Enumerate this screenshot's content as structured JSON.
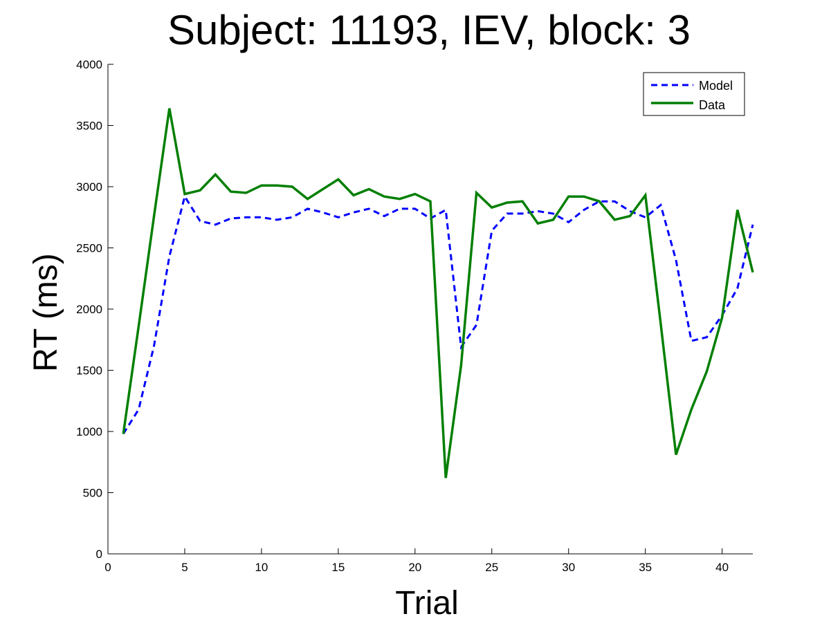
{
  "chart_data": {
    "type": "line",
    "title": "Subject: 11193, IEV, block: 3",
    "xlabel": "Trial",
    "ylabel": "RT (ms)",
    "xlim": [
      0,
      42
    ],
    "ylim": [
      0,
      4000
    ],
    "xticks": [
      0,
      5,
      10,
      15,
      20,
      25,
      30,
      35,
      40
    ],
    "yticks": [
      0,
      500,
      1000,
      1500,
      2000,
      2500,
      3000,
      3500,
      4000
    ],
    "grid": false,
    "legend_position": "top-right",
    "x": [
      1,
      2,
      3,
      4,
      5,
      6,
      7,
      8,
      9,
      10,
      11,
      12,
      13,
      14,
      15,
      16,
      17,
      18,
      19,
      20,
      21,
      22,
      23,
      24,
      25,
      26,
      27,
      28,
      29,
      30,
      31,
      32,
      33,
      34,
      35,
      36,
      37,
      38,
      39,
      40,
      41,
      42
    ],
    "series": [
      {
        "name": "Model",
        "color": "#0000ff",
        "style": "dashed",
        "values": [
          980,
          1180,
          1700,
          2430,
          2920,
          2720,
          2690,
          2740,
          2750,
          2750,
          2730,
          2750,
          2820,
          2790,
          2750,
          2790,
          2820,
          2760,
          2820,
          2820,
          2740,
          2810,
          1690,
          1870,
          2640,
          2780,
          2780,
          2800,
          2780,
          2710,
          2810,
          2880,
          2880,
          2800,
          2750,
          2850,
          2400,
          1740,
          1770,
          1950,
          2170,
          2690
        ]
      },
      {
        "name": "Data",
        "color": "#007f00",
        "style": "solid",
        "values": [
          980,
          1860,
          2760,
          3640,
          2940,
          2970,
          3100,
          2960,
          2950,
          3010,
          3010,
          3000,
          2900,
          2980,
          3060,
          2930,
          2980,
          2920,
          2900,
          2940,
          2880,
          620,
          1540,
          2950,
          2830,
          2870,
          2880,
          2700,
          2730,
          2920,
          2920,
          2880,
          2730,
          2760,
          2930,
          1880,
          810,
          1180,
          1490,
          1930,
          2810,
          2300
        ]
      }
    ]
  }
}
